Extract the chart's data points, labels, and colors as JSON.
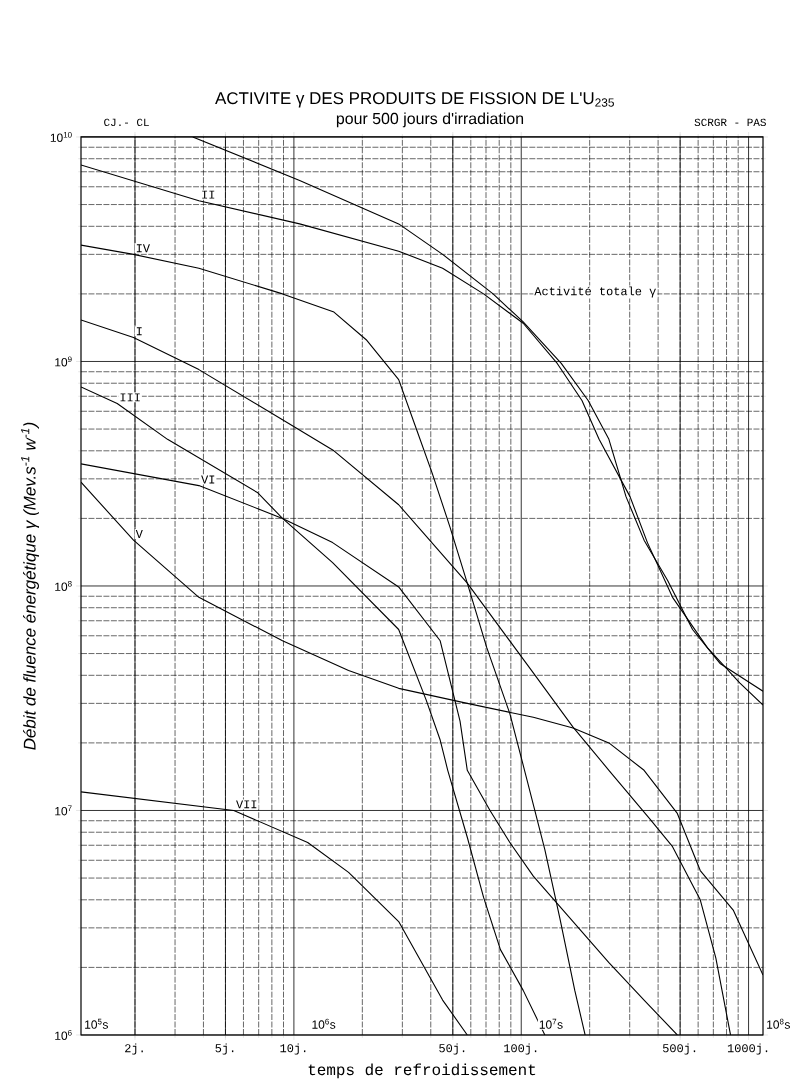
{
  "chart_data": {
    "type": "line",
    "title": "ACTIVITE γ  DES PRODUITS DE FISSION DE  L'U$_{235}$",
    "subtitle": "pour 500 jours d'irradiation",
    "xlabel": "temps de refroidissement",
    "ylabel": "Débit de fluence énergétique γ   (Mev.s$^{-1}$ w$^{-1}$)",
    "annotations": [
      "CJ.- CL",
      "SCRGR - PAS",
      "10$^{5}$s",
      "10$^{6}$s",
      "10$^{7}$s",
      "10$^{8}$s"
    ],
    "log": "xy",
    "grid": true,
    "marker": "none",
    "line_style": "solid",
    "xlim": [
      1.1574,
      1157.4
    ],
    "ylim": [
      1000000,
      10000000000
    ],
    "xticks": [
      {
        "value": 2,
        "label": "2j."
      },
      {
        "value": 5,
        "label": "5j."
      },
      {
        "value": 10,
        "label": "10j."
      },
      {
        "value": 50,
        "label": "50j."
      },
      {
        "value": 100,
        "label": "100j."
      },
      {
        "value": 500,
        "label": "500j."
      },
      {
        "value": 1000,
        "label": "1000j."
      }
    ],
    "yticks": [
      {
        "value": 1000000,
        "label": "10$^{6}$"
      },
      {
        "value": 10000000,
        "label": "10$^{7}$"
      },
      {
        "value": 100000000,
        "label": "10$^{8}$"
      },
      {
        "value": 1000000000,
        "label": "10$^{9}$"
      },
      {
        "value": 10000000000,
        "label": "10$^{10}$"
      }
    ],
    "series": [
      {
        "name": "Activité totale γ",
        "color": "#000000",
        "x": [
          3.59,
          10.6,
          28.9,
          45.1,
          75.2,
          102,
          150,
          197,
          243,
          289,
          347,
          440,
          567,
          752,
          1157.4
        ],
        "values": [
          10000000000,
          6400000000,
          4100000000,
          3000000000,
          2000000000,
          1500000000,
          980000000,
          670000000,
          450000000,
          250000000,
          160000000,
          106000000,
          64000000,
          45000000,
          34000000
        ]
      },
      {
        "name": "II",
        "color": "#000000",
        "x": [
          1.1574,
          3.82,
          10.6,
          28.9,
          45.1,
          68.3,
          102,
          144,
          185,
          220,
          301,
          359,
          463,
          660,
          914,
          1157.4
        ],
        "values": [
          7500000000,
          5200000000,
          4100000000,
          3100000000,
          2600000000,
          2000000000,
          1480000000,
          980000000,
          670000000,
          450000000,
          250000000,
          156000000,
          89000000,
          53000000,
          37000000,
          29500000
        ]
      },
      {
        "name": "IV",
        "color": "#000000",
        "x": [
          1.1574,
          1.97,
          3.82,
          8.91,
          15.0,
          20.8,
          28.9,
          34.7,
          40.5,
          48.6,
          57.9,
          70.6,
          89.1,
          106,
          127,
          148,
          172,
          191
        ],
        "values": [
          3300000000,
          3000000000,
          2600000000,
          2000000000,
          1660000000,
          1250000000,
          830000000,
          495000000,
          320000000,
          183000000,
          103000000,
          53000000,
          27000000,
          13700000,
          6700000,
          3300000,
          1580000,
          1000000
        ]
      },
      {
        "name": "I",
        "color": "#000000",
        "x": [
          1.1574,
          1.97,
          3.82,
          8.91,
          15.0,
          28.9,
          57.9,
          113,
          169,
          243,
          370,
          463,
          613,
          718,
          833
        ],
        "values": [
          1530000000,
          1280000000,
          920000000,
          550000000,
          400000000,
          230000000,
          103000000,
          41000000,
          23500000,
          15100000,
          9100000,
          6900000,
          4000000,
          2200000,
          1000000
        ]
      },
      {
        "name": "III",
        "color": "#000000",
        "x": [
          1.1574,
          1.67,
          2.78,
          6.94,
          8.91,
          14.8,
          28.9,
          38.2,
          44.0,
          47.5,
          57.9,
          68.3,
          81.0,
          102,
          127
        ],
        "values": [
          770000000,
          650000000,
          450000000,
          260000000,
          200000000,
          127000000,
          64000000,
          31000000,
          20600000,
          15100000,
          7600000,
          4100000,
          2400000,
          1580000,
          1000000
        ]
      },
      {
        "name": "VI",
        "color": "#000000",
        "x": [
          1.1574,
          3.82,
          8.91,
          14.8,
          28.9,
          44.0,
          53.8,
          57.9,
          72.9,
          89.1,
          113,
          169,
          243,
          347,
          486
        ],
        "values": [
          350000000,
          280000000,
          200000000,
          156000000,
          99000000,
          57000000,
          25000000,
          15100000,
          10000000,
          7200000,
          5100000,
          3200000,
          2100000,
          1430000,
          1000000
        ]
      },
      {
        "name": "V",
        "color": "#000000",
        "x": [
          1.1574,
          1.97,
          3.82,
          8.91,
          17.4,
          28.9,
          57.9,
          113,
          169,
          243,
          347,
          486,
          613,
          856,
          1157.4
        ],
        "values": [
          290000000,
          160000000,
          89000000,
          57000000,
          42000000,
          35000000,
          30000000,
          26000000,
          23300000,
          20000000,
          15100000,
          9700000,
          5400000,
          3600000,
          1850000
        ]
      },
      {
        "name": "VII",
        "color": "#000000",
        "x": [
          1.1574,
          5.44,
          11.5,
          17.4,
          28.9,
          45.1,
          57.9
        ],
        "values": [
          12100000,
          10000000,
          7200000,
          5300000,
          3200000,
          1430000,
          1000000
        ]
      }
    ]
  }
}
